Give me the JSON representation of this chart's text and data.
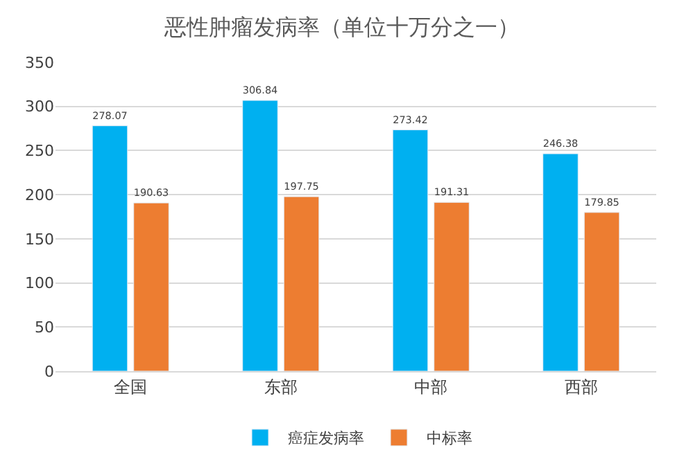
{
  "chart_data": {
    "type": "bar",
    "title": "恶性肿瘤发病率（单位十万分之一）",
    "categories": [
      "全国",
      "东部",
      "中部",
      "西部"
    ],
    "series": [
      {
        "name": "癌症发病率",
        "color": "#00b0f0",
        "values": [
          278.07,
          306.84,
          273.42,
          246.38
        ]
      },
      {
        "name": "中标率",
        "color": "#ed7d31",
        "values": [
          190.63,
          197.75,
          191.31,
          179.85
        ]
      }
    ],
    "ylim": [
      0,
      350
    ],
    "yticks": [
      0,
      50,
      100,
      150,
      200,
      250,
      300,
      350
    ],
    "grid": "y",
    "legend": "bottom",
    "data_labels": true
  }
}
